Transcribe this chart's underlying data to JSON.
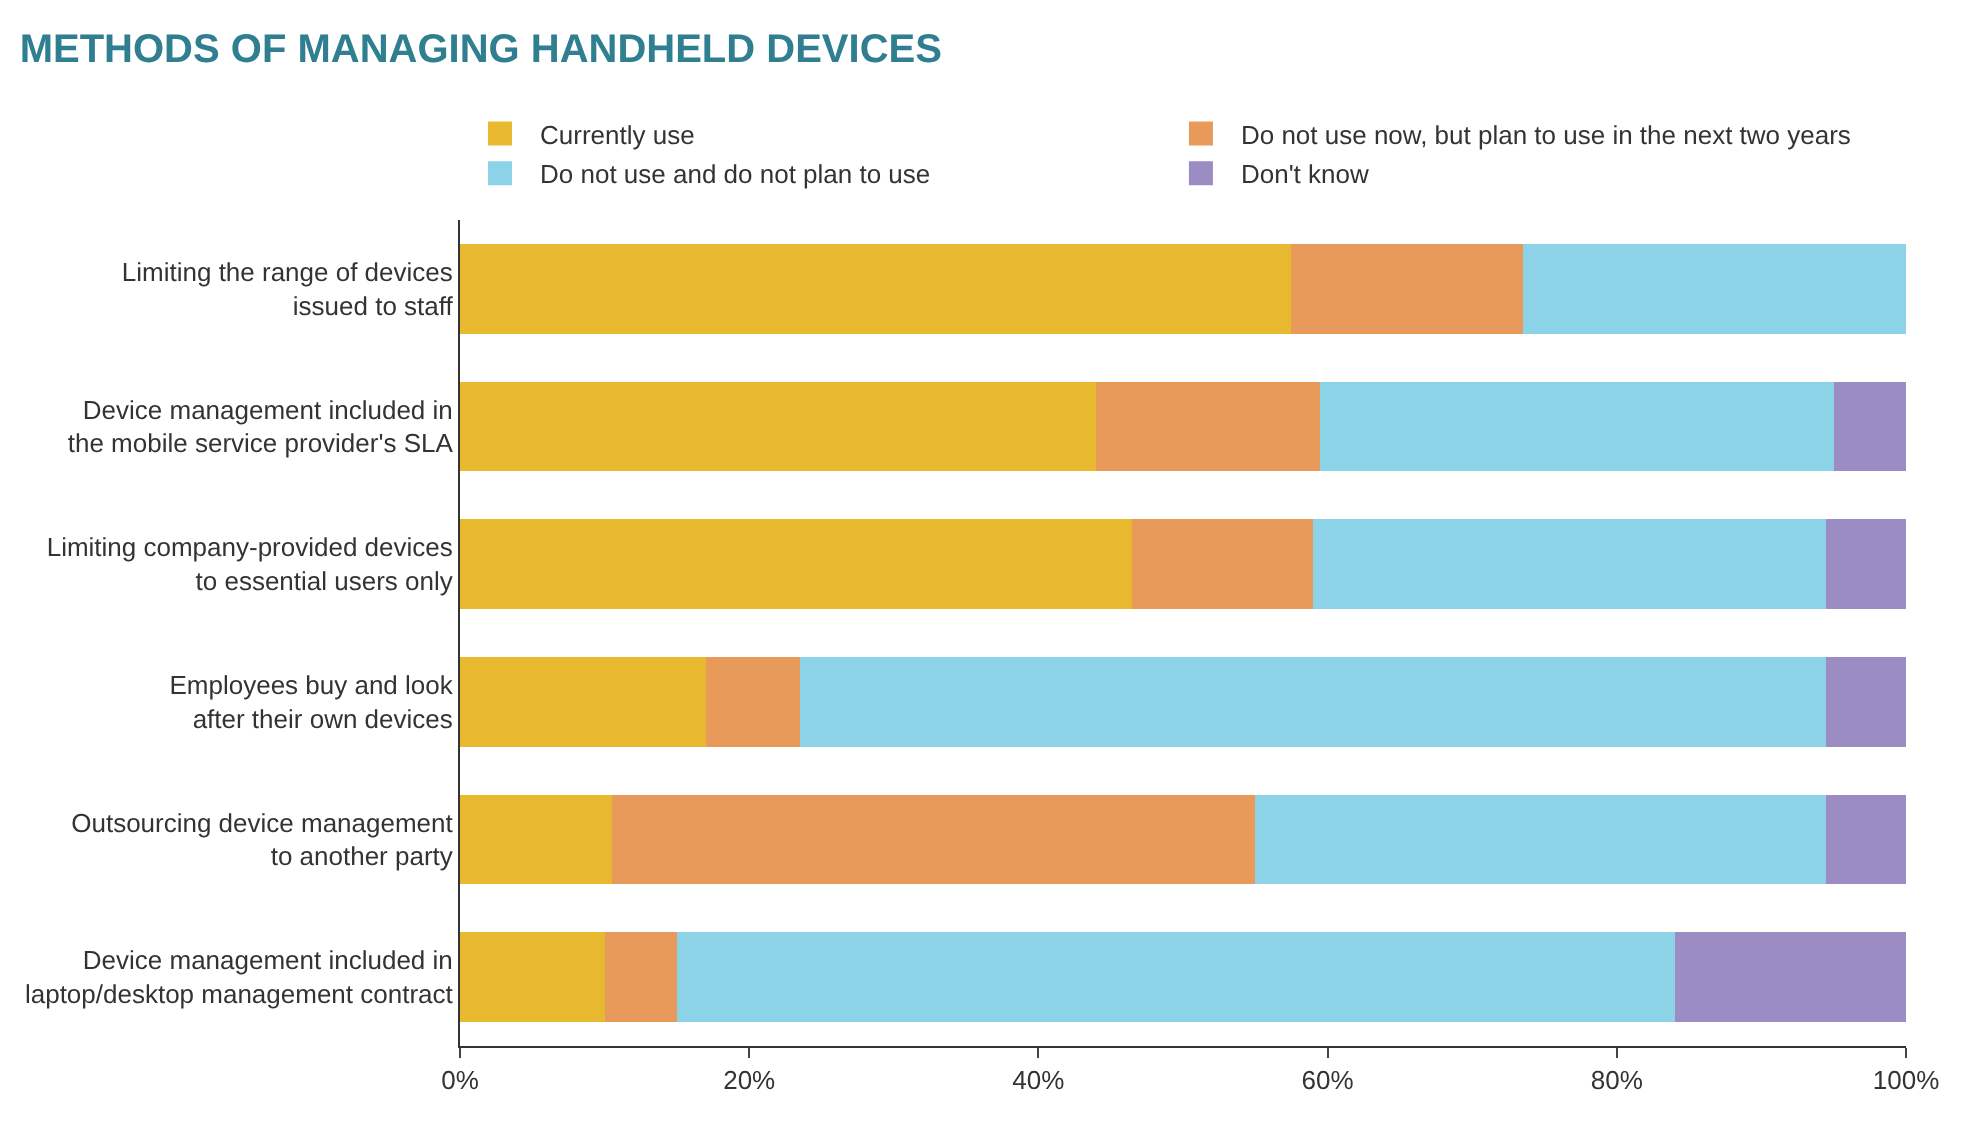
{
  "chart_data": {
    "type": "bar",
    "title": "METHODS OF MANAGING HANDHELD DEVICES",
    "orientation": "horizontal",
    "stacked": true,
    "legend": "top left",
    "categories": [
      "Limiting the range of devices\nissued to staff",
      "Device management included in\nthe mobile service provider's SLA",
      "Limiting company-provided devices\nto essential users only",
      "Employees buy and look\nafter their own devices",
      "Outsourcing device management\nto another party",
      "Device management included in\nlaptop/desktop management contract"
    ],
    "series": [
      {
        "name": "Currently use",
        "color": "#e8b92e",
        "values": [
          57.5,
          44,
          46.5,
          17,
          10.5,
          10
        ]
      },
      {
        "name": "Do not use now, but plan to use in the next two years",
        "color": "#e89a5a",
        "values": [
          16,
          15.5,
          12.5,
          6.5,
          44.5,
          5
        ]
      },
      {
        "name": "Do not use and do not plan to use",
        "color": "#8dd3e8",
        "values": [
          26.5,
          35.5,
          35.5,
          71,
          39.5,
          69
        ]
      },
      {
        "name": "Don't know",
        "color": "#9b8cc4",
        "values": [
          0,
          5,
          5.5,
          5.5,
          5.5,
          16
        ]
      }
    ],
    "xlim": [
      0,
      100
    ],
    "xticks": [
      {
        "value": 0,
        "label": "0%"
      },
      {
        "value": 20,
        "label": "20%"
      },
      {
        "value": 40,
        "label": "40%"
      },
      {
        "value": 60,
        "label": "60%"
      },
      {
        "value": 80,
        "label": "80%"
      },
      {
        "value": 100,
        "label": "100%"
      }
    ]
  }
}
